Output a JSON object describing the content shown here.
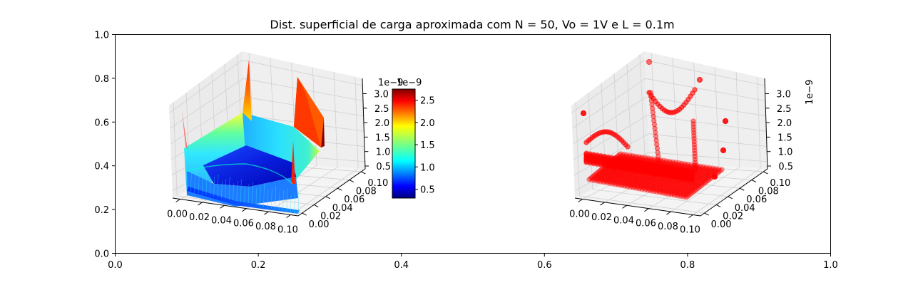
{
  "chart_data": [
    {
      "type": "table",
      "role": "background-axes",
      "title": "Dist. superficial de carga aproximada com N = 50, Vo = 1V e L = 0.1m",
      "x_ticks": [
        "0.0",
        "0.2",
        "0.4",
        "0.6",
        "0.8",
        "1.0"
      ],
      "y_ticks": [
        "0.0",
        "0.2",
        "0.4",
        "0.6",
        "0.8",
        "1.0"
      ],
      "xlim": [
        0,
        1
      ],
      "ylim": [
        0,
        1
      ]
    },
    {
      "type": "surface",
      "x_ticks": [
        "0.00",
        "0.02",
        "0.04",
        "0.06",
        "0.08",
        "0.10"
      ],
      "y_ticks": [
        "0.00",
        "0.02",
        "0.04",
        "0.06",
        "0.08",
        "0.10"
      ],
      "z_ticks": [
        "0.5",
        "1.0",
        "1.5",
        "2.0",
        "2.5",
        "3.0"
      ],
      "xlim": [
        0,
        0.1
      ],
      "ylim": [
        0,
        0.1
      ],
      "zlim": [
        2e-10,
        3.2e-09
      ],
      "offset_label": "1e−9",
      "colormap": "jet",
      "colorbar": {
        "offset_label": "1e−9",
        "ticks": [
          "0.5",
          "1.0",
          "1.5",
          "2.0",
          "2.5"
        ],
        "range": [
          0.3,
          2.75
        ]
      }
    },
    {
      "type": "scatter",
      "x_ticks": [
        "0.00",
        "0.02",
        "0.04",
        "0.06",
        "0.08",
        "0.10"
      ],
      "y_ticks": [
        "0.00",
        "0.02",
        "0.04",
        "0.06",
        "0.08",
        "0.10"
      ],
      "z_ticks": [
        "0.5",
        "1.0",
        "1.5",
        "2.0",
        "2.5",
        "3.0"
      ],
      "xlim": [
        0,
        0.1
      ],
      "ylim": [
        0,
        0.1
      ],
      "zlim": [
        2e-10,
        3.2e-09
      ],
      "offset_label": "1e−9",
      "marker_color": "#ff0000"
    }
  ],
  "colors": {
    "pane_left": "#e9e9e9",
    "pane_right": "#ececec",
    "pane_floor": "#f2f2f2",
    "grid": "#d2d2d2",
    "scatter": "#ff0000"
  }
}
